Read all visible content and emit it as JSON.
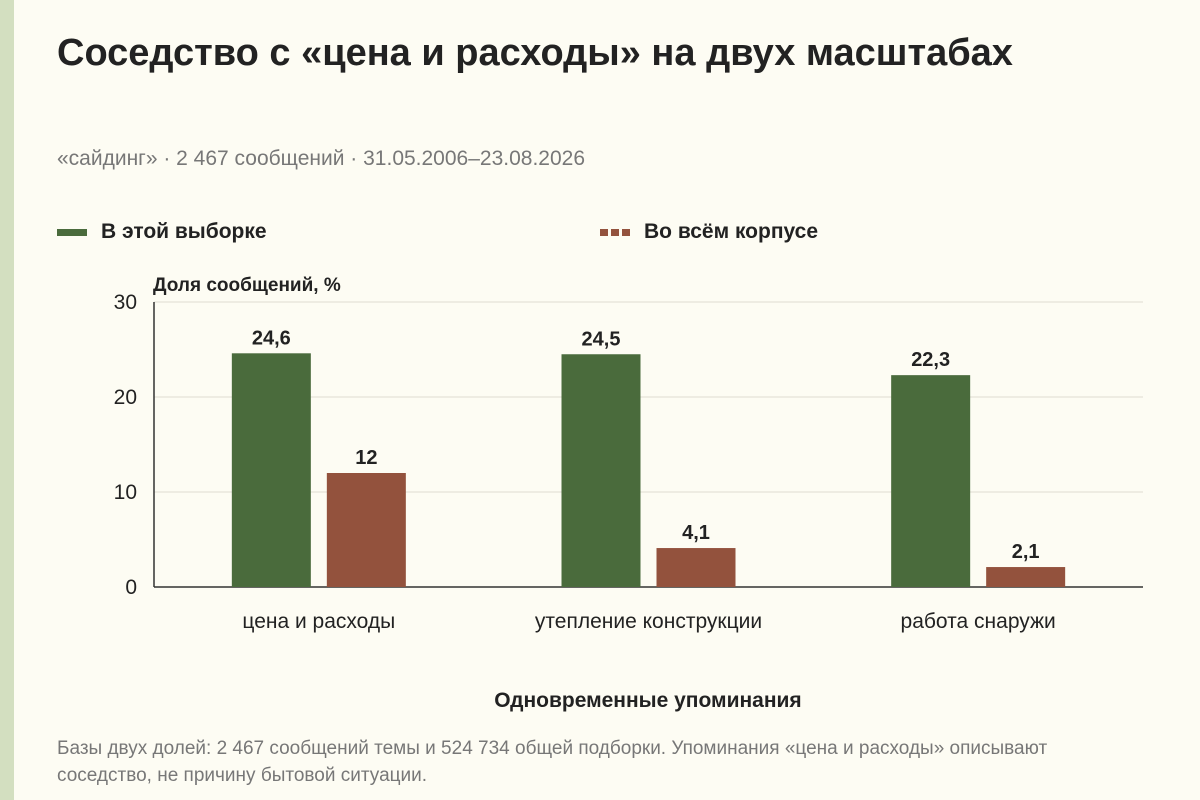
{
  "colors": {
    "sample": "#4a6b3c",
    "corpus": "#93523d",
    "grid": "#dedbd0",
    "axis": "#333333",
    "strip": "#d3dfc0"
  },
  "title": "Соседство с «цена и расходы» на двух масштабах",
  "subtitle": "«сайдинг» · 2 467 сообщений · 31.05.2006–23.08.2026",
  "footnote": "Базы двух долей: 2 467 сообщений темы и 524 734 общей подборки. Упоминания «цена и расходы» описывают соседство, не причину бытовой ситуации.",
  "chart_data": {
    "type": "bar",
    "title": "Соседство с «цена и расходы» на двух масштабах",
    "ylabel": "Доля сообщений, %",
    "xlabel": "Одновременные упоминания",
    "ylim": [
      0,
      30
    ],
    "yticks": [
      0,
      10,
      20,
      30
    ],
    "grid": true,
    "legend": "top",
    "categories": [
      "цена и расходы",
      "утепление конструкции",
      "работа снаружи"
    ],
    "series": [
      {
        "name": "В этой выборке",
        "values": [
          24.6,
          24.5,
          22.3
        ],
        "labels": [
          "24,6",
          "24,5",
          "22,3"
        ]
      },
      {
        "name": "Во всём корпусе",
        "values": [
          12,
          4.1,
          2.1
        ],
        "labels": [
          "12",
          "4,1",
          "2,1"
        ]
      }
    ]
  }
}
